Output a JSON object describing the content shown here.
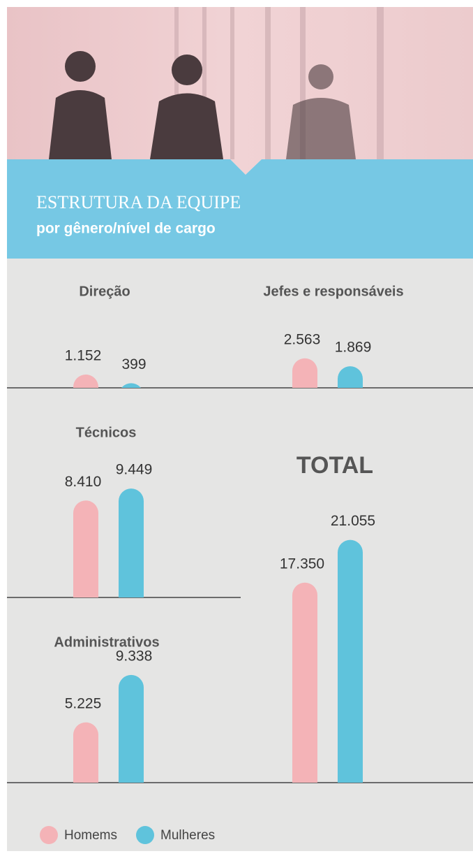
{
  "header": {
    "title": "ESTRUTURA DA EQUIPE",
    "subtitle": "por gênero/nível de cargo"
  },
  "legend": [
    {
      "name": "Homems",
      "color": "#f4b3b7"
    },
    {
      "name": "Mulheres",
      "color": "#5fc3dc"
    }
  ],
  "chart_data": [
    {
      "type": "bar",
      "title": "Direção",
      "values": [
        1152,
        399
      ],
      "value_labels": [
        "1.152",
        "399"
      ]
    },
    {
      "type": "bar",
      "title": "Jefes e responsáveis",
      "values": [
        2563,
        1869
      ],
      "value_labels": [
        "2.563",
        "1.869"
      ]
    },
    {
      "type": "bar",
      "title": "Técnicos",
      "values": [
        8410,
        9449
      ],
      "value_labels": [
        "8.410",
        "9.449"
      ]
    },
    {
      "type": "bar",
      "title": "Administrativos",
      "values": [
        5225,
        9338
      ],
      "value_labels": [
        "5.225",
        "9.338"
      ]
    },
    {
      "type": "bar",
      "title": "TOTAL",
      "values": [
        17350,
        21055
      ],
      "value_labels": [
        "17.350",
        "21.055"
      ]
    }
  ]
}
